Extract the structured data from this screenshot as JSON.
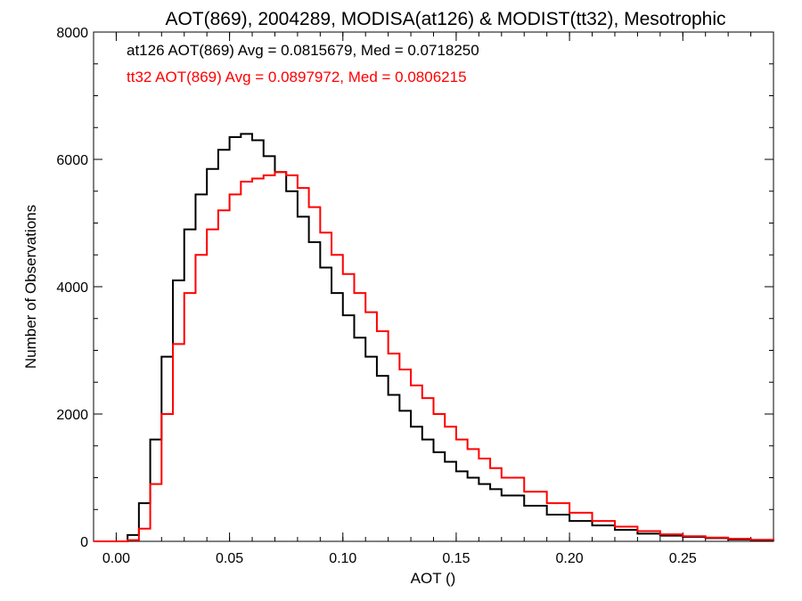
{
  "chart_data": {
    "type": "line",
    "title": "AOT(869), 2004289, MODISA(at126) & MODIST(tt32), Mesotrophic",
    "xlabel": "AOT ()",
    "ylabel": "Number of Observations",
    "xlim": [
      -0.01,
      0.29
    ],
    "ylim": [
      0,
      8000
    ],
    "x_ticks": [
      "0.00",
      "0.05",
      "0.10",
      "0.15",
      "0.20",
      "0.25"
    ],
    "y_ticks": [
      "0",
      "2000",
      "4000",
      "6000",
      "8000"
    ],
    "x": [
      0.0,
      0.005,
      0.01,
      0.015,
      0.02,
      0.025,
      0.03,
      0.035,
      0.04,
      0.045,
      0.05,
      0.055,
      0.06,
      0.065,
      0.07,
      0.075,
      0.08,
      0.085,
      0.09,
      0.095,
      0.1,
      0.105,
      0.11,
      0.115,
      0.12,
      0.125,
      0.13,
      0.135,
      0.14,
      0.145,
      0.15,
      0.155,
      0.16,
      0.165,
      0.17,
      0.18,
      0.19,
      0.2,
      0.21,
      0.22,
      0.23,
      0.24,
      0.25,
      0.26,
      0.27,
      0.28,
      0.29
    ],
    "series": [
      {
        "name": "at126",
        "color": "#000000",
        "values": [
          0,
          100,
          600,
          1600,
          2900,
          4100,
          4900,
          5450,
          5850,
          6150,
          6350,
          6400,
          6300,
          6050,
          5800,
          5500,
          5100,
          4700,
          4300,
          3900,
          3550,
          3200,
          2900,
          2600,
          2300,
          2050,
          1800,
          1600,
          1400,
          1250,
          1100,
          1000,
          900,
          820,
          720,
          560,
          420,
          320,
          250,
          180,
          120,
          90,
          70,
          50,
          30,
          20,
          5
        ]
      },
      {
        "name": "tt32",
        "color": "#ff0000",
        "values": [
          0,
          20,
          200,
          900,
          2000,
          3100,
          3900,
          4500,
          4900,
          5200,
          5450,
          5650,
          5700,
          5750,
          5800,
          5750,
          5550,
          5250,
          4850,
          4500,
          4200,
          3900,
          3600,
          3300,
          2950,
          2700,
          2450,
          2250,
          2000,
          1800,
          1600,
          1450,
          1300,
          1150,
          1000,
          780,
          600,
          450,
          320,
          230,
          160,
          110,
          80,
          60,
          40,
          25,
          10
        ]
      }
    ]
  },
  "annotations": {
    "at126_stats": "at126 AOT(869) Avg = 0.0815679, Med = 0.0718250",
    "tt32_stats": "tt32 AOT(869) Avg = 0.0897972, Med = 0.0806215"
  },
  "colors": {
    "at126": "#000000",
    "tt32": "#ff0000"
  }
}
